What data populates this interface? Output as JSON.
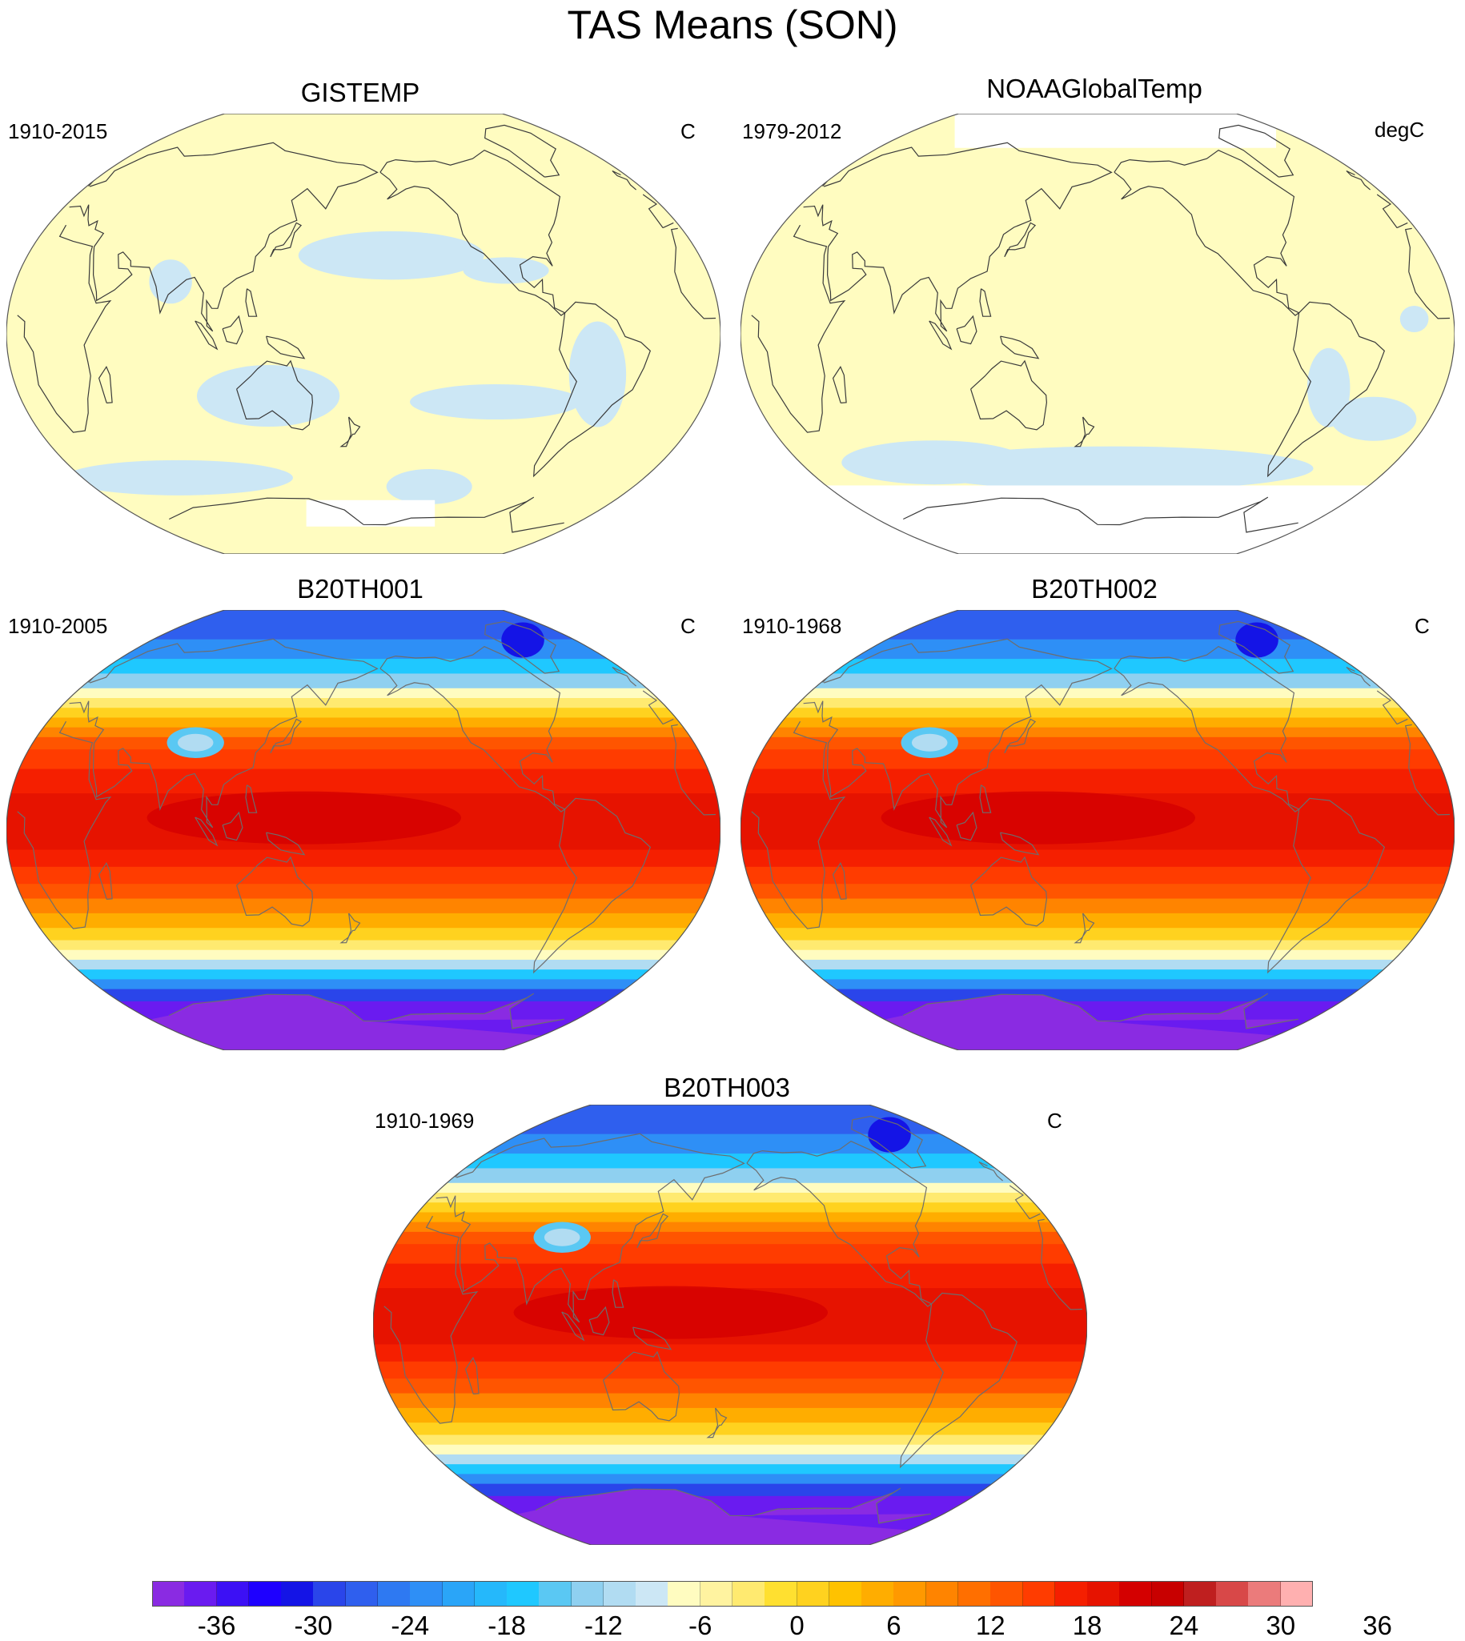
{
  "figure": {
    "title": "TAS Means (SON)"
  },
  "panels": [
    {
      "title": "GISTEMP",
      "period": "1910-2015",
      "units": "C",
      "style": "anomaly"
    },
    {
      "title": "NOAAGlobalTemp",
      "period": "1979-2012",
      "units": "degC",
      "style": "anomaly-masked"
    },
    {
      "title": "B20TH001",
      "period": "1910-2005",
      "units": "C",
      "style": "full"
    },
    {
      "title": "B20TH002",
      "period": "1910-1968",
      "units": "C",
      "style": "full"
    },
    {
      "title": "B20TH003",
      "period": "1910-1969",
      "units": "C",
      "style": "full"
    }
  ],
  "colorbar": {
    "labels": [
      "-36",
      "-30",
      "-24",
      "-18",
      "-12",
      "-6",
      "0",
      "6",
      "12",
      "18",
      "24",
      "30",
      "36"
    ],
    "colors": [
      "#8a2be2",
      "#6a1bf0",
      "#3c10f5",
      "#1e00ff",
      "#1414e6",
      "#2a45ea",
      "#2f5fee",
      "#2e79f2",
      "#2e8ff6",
      "#2aa5f8",
      "#25b8fb",
      "#1fc8ff",
      "#5ac8f3",
      "#8fd0f0",
      "#b1dcf2",
      "#cce7f5",
      "#fffcc0",
      "#fff3a0",
      "#ffea70",
      "#ffe030",
      "#ffd21f",
      "#ffc200",
      "#ffad00",
      "#ff9900",
      "#ff8400",
      "#ff6f00",
      "#ff5500",
      "#ff3c00",
      "#f51f00",
      "#e61300",
      "#d40000",
      "#c80000",
      "#bf1f1f",
      "#d84848",
      "#eb7b7b",
      "#ffb0b0"
    ],
    "anomaly_colors": {
      "near_zero_positive": "#fffcc0",
      "near_zero_negative": "#cce7f5"
    }
  }
}
